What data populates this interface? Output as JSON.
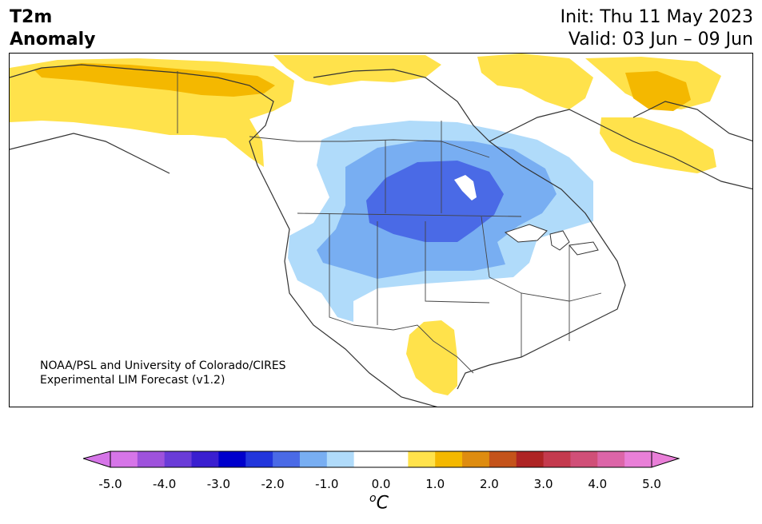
{
  "header": {
    "title_line1": "T2m",
    "title_line2": "Anomaly",
    "init": "Init: Thu 11 May 2023",
    "valid": "Valid: 03 Jun – 09 Jun"
  },
  "credit": {
    "line1": "NOAA/PSL and University of Colorado/CIRES",
    "line2": "Experimental LIM Forecast (v1.2)"
  },
  "colorbar": {
    "unit_base": "C",
    "unit_sup": "o",
    "ticks": [
      "-5.0",
      "-4.0",
      "-3.0",
      "-2.0",
      "-1.0",
      "0.0",
      "1.0",
      "2.0",
      "3.0",
      "4.0",
      "5.0"
    ],
    "colors": [
      "#d675e8",
      "#9e52dc",
      "#6a3cd8",
      "#3a1fd0",
      "#0000cc",
      "#2236dc",
      "#4a6ae6",
      "#78aef2",
      "#b0dbfa",
      "#ffffff",
      "#ffffff",
      "#ffe24b",
      "#f4b800",
      "#de8c10",
      "#c4531a",
      "#ae2424",
      "#c43a4e",
      "#d04f78",
      "#dc65a8",
      "#e97fd8"
    ],
    "under_color": "#d675e8",
    "over_color": "#e97fd8"
  },
  "map": {
    "region": "North America",
    "anomalies": [
      {
        "name": "Alaska / Yukon",
        "sign": "warm",
        "max": 1.5
      },
      {
        "name": "Canadian Arctic Archipelago",
        "sign": "warm",
        "max": 1.5
      },
      {
        "name": "Northern Quebec / Labrador",
        "sign": "warm",
        "max": 1.5
      },
      {
        "name": "Northern Mexico / Texas",
        "sign": "warm",
        "max": 1.0
      },
      {
        "name": "Northern Plains / Prairies",
        "sign": "cold",
        "min": -2.5
      },
      {
        "name": "Western US",
        "sign": "cold",
        "min": -1.5
      }
    ]
  }
}
